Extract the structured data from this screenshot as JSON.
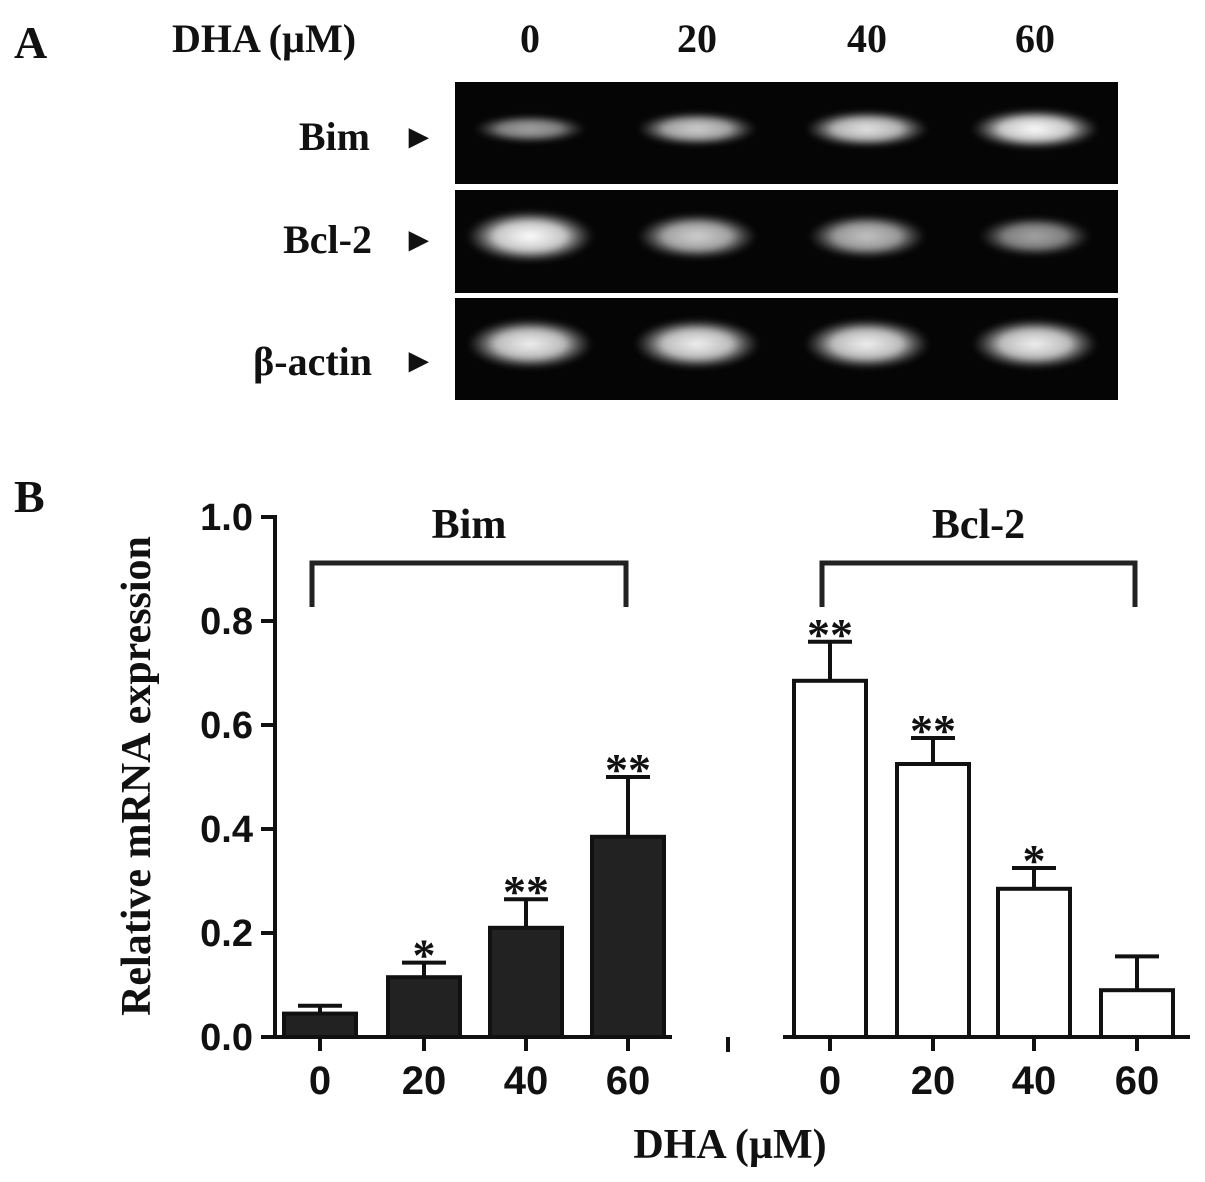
{
  "panel_a": {
    "letter": "A",
    "header_label": "DHA (µM)",
    "lane_labels": [
      "0",
      "20",
      "40",
      "60"
    ],
    "rows": [
      {
        "label": "Bim",
        "arrow": "►",
        "band_intensity": [
          0.45,
          0.72,
          0.85,
          1.0
        ]
      },
      {
        "label": "Bcl-2",
        "arrow": "►",
        "band_intensity": [
          1.0,
          0.72,
          0.65,
          0.45
        ]
      },
      {
        "label": "β-actin",
        "arrow": "►",
        "band_intensity": [
          0.92,
          0.92,
          0.92,
          0.92
        ]
      }
    ]
  },
  "panel_b": {
    "letter": "B",
    "chart_data": {
      "type": "bar",
      "ylabel": "Relative mRNA expression",
      "xlabel": "DHA (µM)",
      "ylim": [
        0,
        1.0
      ],
      "y_ticks": [
        "0.0",
        "0.2",
        "0.4",
        "0.6",
        "0.8",
        "1.0"
      ],
      "y_tick_values": [
        0,
        0.2,
        0.4,
        0.6,
        0.8,
        1.0
      ],
      "grid": false,
      "groups": [
        {
          "name": "Bim",
          "fill": "#222222",
          "categories": [
            "0",
            "20",
            "40",
            "60"
          ],
          "values": [
            0.045,
            0.115,
            0.21,
            0.385
          ],
          "errors": [
            0.015,
            0.028,
            0.055,
            0.115
          ],
          "significance": [
            "",
            "*",
            "**",
            "**"
          ]
        },
        {
          "name": "Bcl-2",
          "fill": "#ffffff",
          "categories": [
            "0",
            "20",
            "40",
            "60"
          ],
          "values": [
            0.685,
            0.525,
            0.285,
            0.09
          ],
          "errors": [
            0.075,
            0.05,
            0.04,
            0.065
          ],
          "significance": [
            "**",
            "**",
            "*",
            ""
          ]
        }
      ]
    }
  }
}
